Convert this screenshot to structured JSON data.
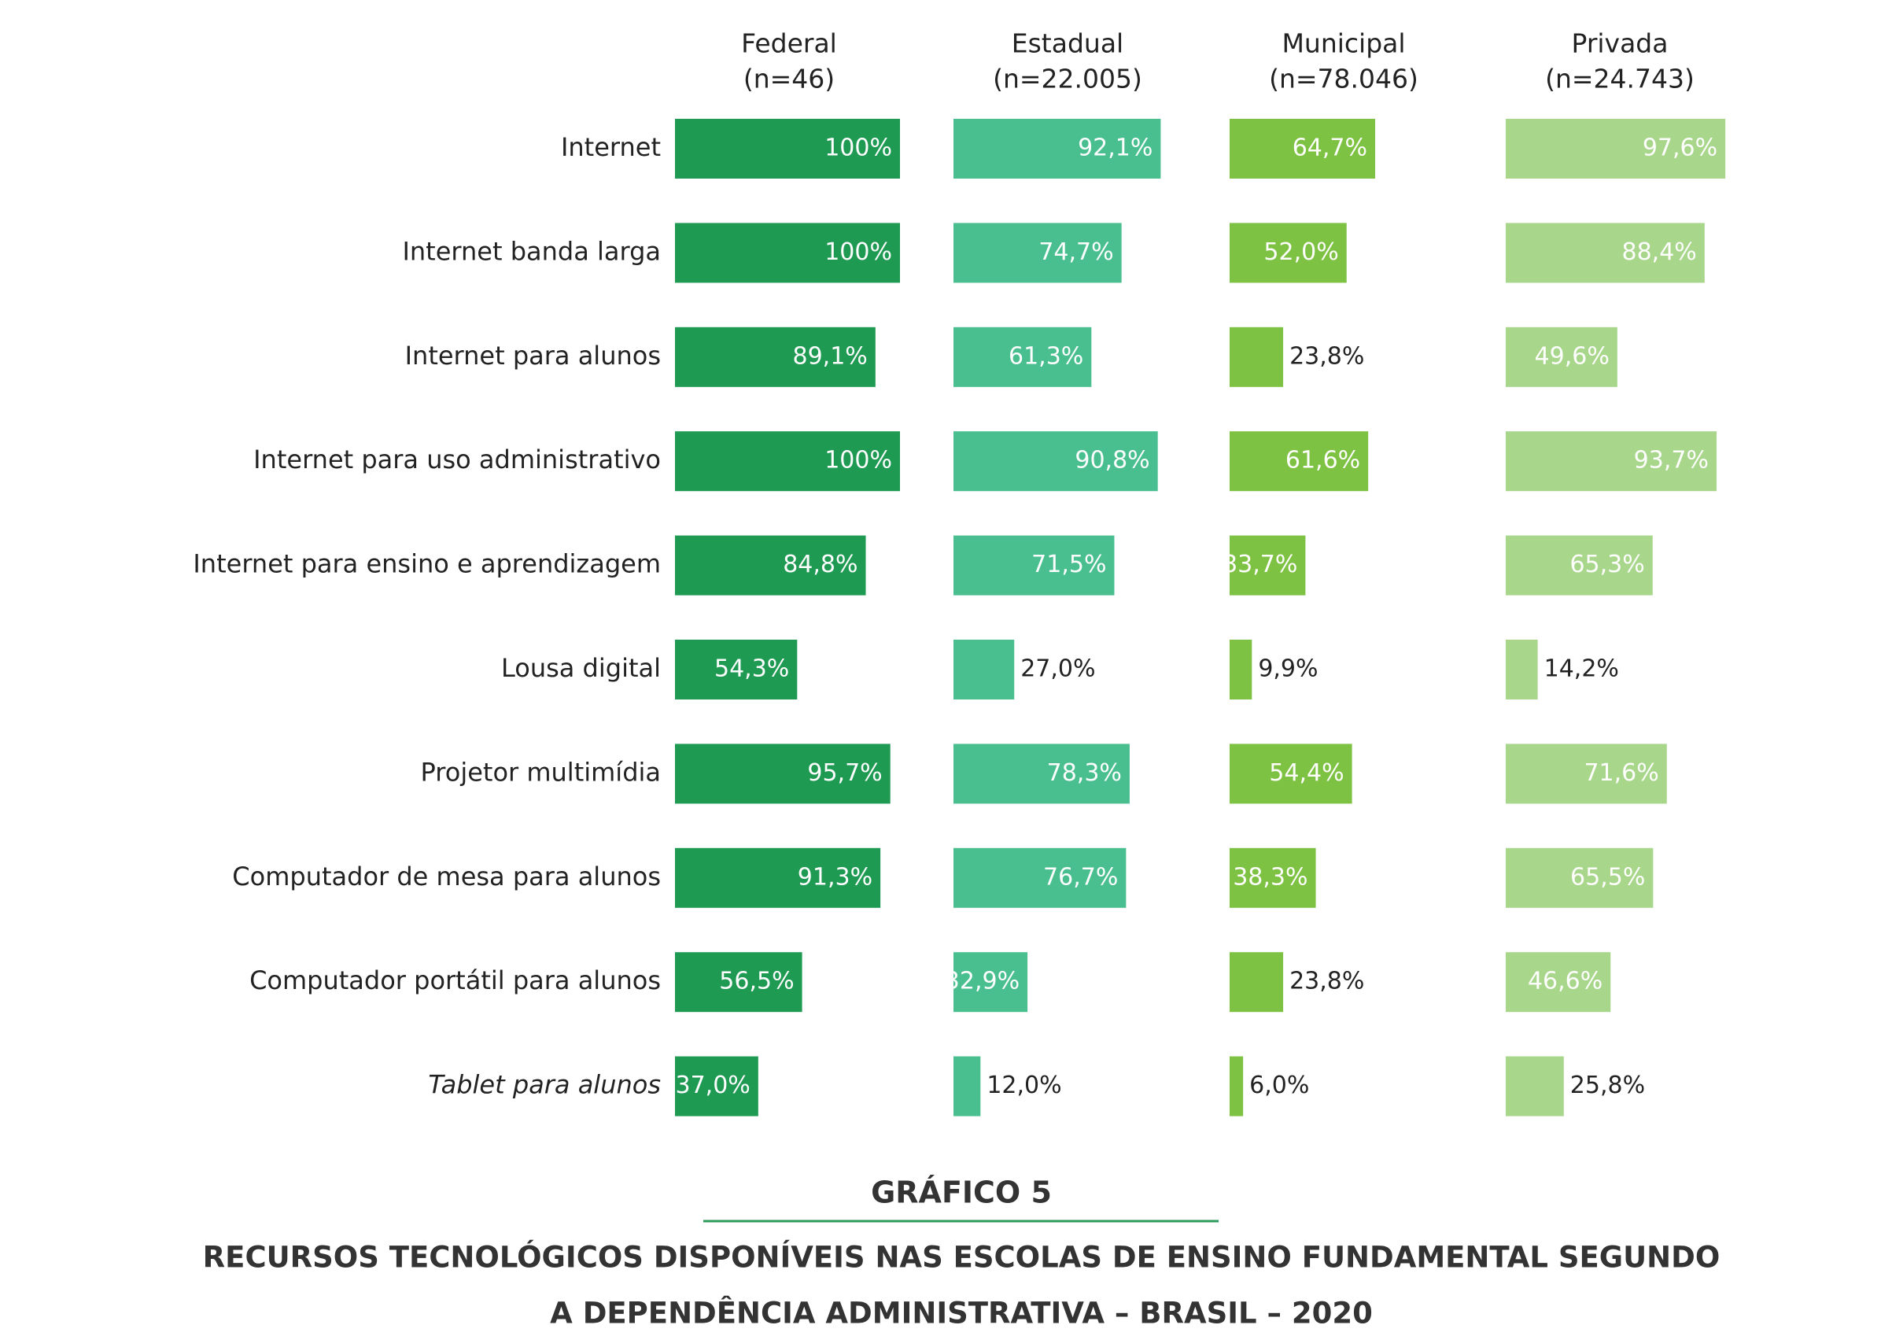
{
  "chart_data": {
    "type": "bar",
    "orientation": "horizontal",
    "title": "GRÁFICO 5",
    "subtitle": [
      "RECURSOS TECNOLÓGICOS DISPONÍVEIS NAS ESCOLAS DE ENSINO FUNDAMENTAL SEGUNDO",
      "A DEPENDÊNCIA ADMINISTRATIVA – BRASIL – 2020"
    ],
    "xlim": [
      0,
      100
    ],
    "categories": [
      "Internet",
      "Internet banda larga",
      "Internet para alunos",
      "Internet para uso administrativo",
      "Internet para ensino e aprendizagem",
      "Lousa digital",
      "Projetor multimídia",
      "Computador de mesa para alunos",
      "Computador portátil para alunos",
      "Tablet para alunos"
    ],
    "series": [
      {
        "name": "Federal",
        "sample": "(n=46)",
        "color": "#1f9a52",
        "values": [
          100,
          100,
          89.1,
          100,
          84.8,
          54.3,
          95.7,
          91.3,
          56.5,
          37.0
        ],
        "value_labels": [
          "100%",
          "100%",
          "89,1%",
          "100%",
          "84,8%",
          "54,3%",
          "95,7%",
          "91,3%",
          "56,5%",
          "37,0%"
        ]
      },
      {
        "name": "Estadual",
        "sample": "(n=22.005)",
        "color": "#49bf8f",
        "values": [
          92.1,
          74.7,
          61.3,
          90.8,
          71.5,
          27.0,
          78.3,
          76.7,
          32.9,
          12.0
        ],
        "value_labels": [
          "92,1%",
          "74,7%",
          "61,3%",
          "90,8%",
          "71,5%",
          "27,0%",
          "78,3%",
          "76,7%",
          "32,9%",
          "12,0%"
        ]
      },
      {
        "name": "Municipal",
        "sample": "(n=78.046)",
        "color": "#7dc242",
        "values": [
          64.7,
          52.0,
          23.8,
          61.6,
          33.7,
          9.9,
          54.4,
          38.3,
          23.8,
          6.0
        ],
        "value_labels": [
          "64,7%",
          "52,0%",
          "23,8%",
          "61,6%",
          "33,7%",
          "9,9%",
          "54,4%",
          "38,3%",
          "23,8%",
          "6,0%"
        ]
      },
      {
        "name": "Privada",
        "sample": "(n=24.743)",
        "color": "#a8d68a",
        "values": [
          97.6,
          88.4,
          49.6,
          93.7,
          65.3,
          14.2,
          71.6,
          65.5,
          46.6,
          25.8
        ],
        "value_labels": [
          "97,6%",
          "88,4%",
          "49,6%",
          "93,7%",
          "65,3%",
          "14,2%",
          "71,6%",
          "65,5%",
          "46,6%",
          "25,8%"
        ]
      }
    ]
  }
}
